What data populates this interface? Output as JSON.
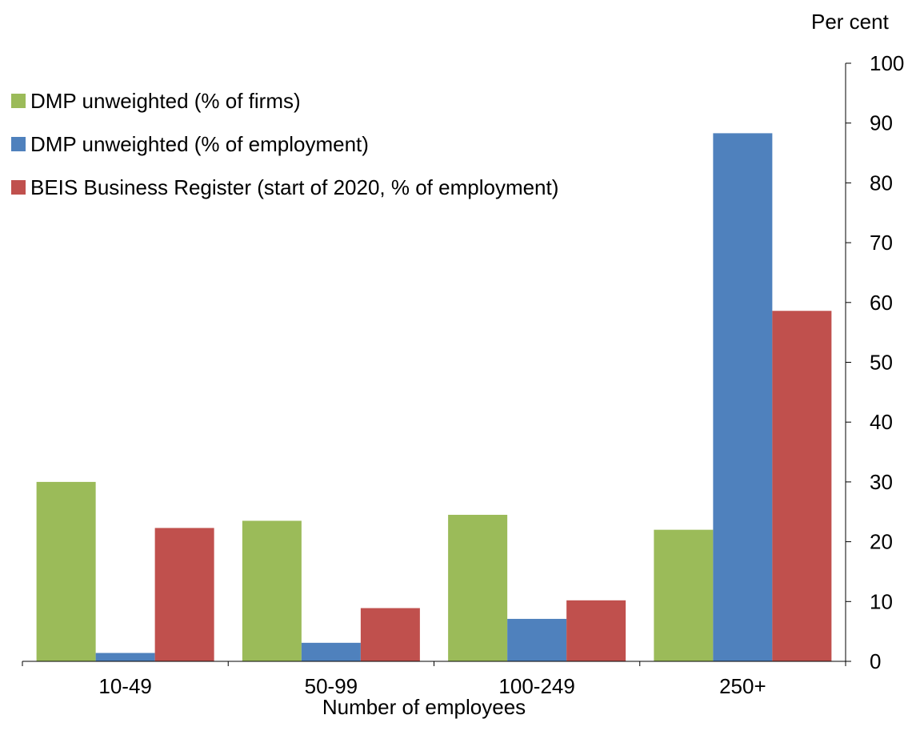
{
  "chart_data": {
    "type": "bar",
    "title": "",
    "xlabel": "Number of employees",
    "ylabel": "Per cent",
    "ylim": [
      0,
      100
    ],
    "yticks": [
      0,
      10,
      20,
      30,
      40,
      50,
      60,
      70,
      80,
      90,
      100
    ],
    "grid": false,
    "legend_position": "top-left",
    "categories": [
      "10-49",
      "50-99",
      "100-249",
      "250+"
    ],
    "series": [
      {
        "name": "DMP unweighted (% of firms)",
        "color": "#9BBB59",
        "values": [
          30,
          23.5,
          24.5,
          22
        ]
      },
      {
        "name": "DMP unweighted (% of employment)",
        "color": "#4F81BD",
        "values": [
          1.4,
          3.1,
          7.1,
          88.3
        ]
      },
      {
        "name": "BEIS Business Register (start of 2020, % of employment)",
        "color": "#C0504D",
        "values": [
          22.3,
          8.9,
          10.2,
          58.6
        ]
      }
    ]
  }
}
